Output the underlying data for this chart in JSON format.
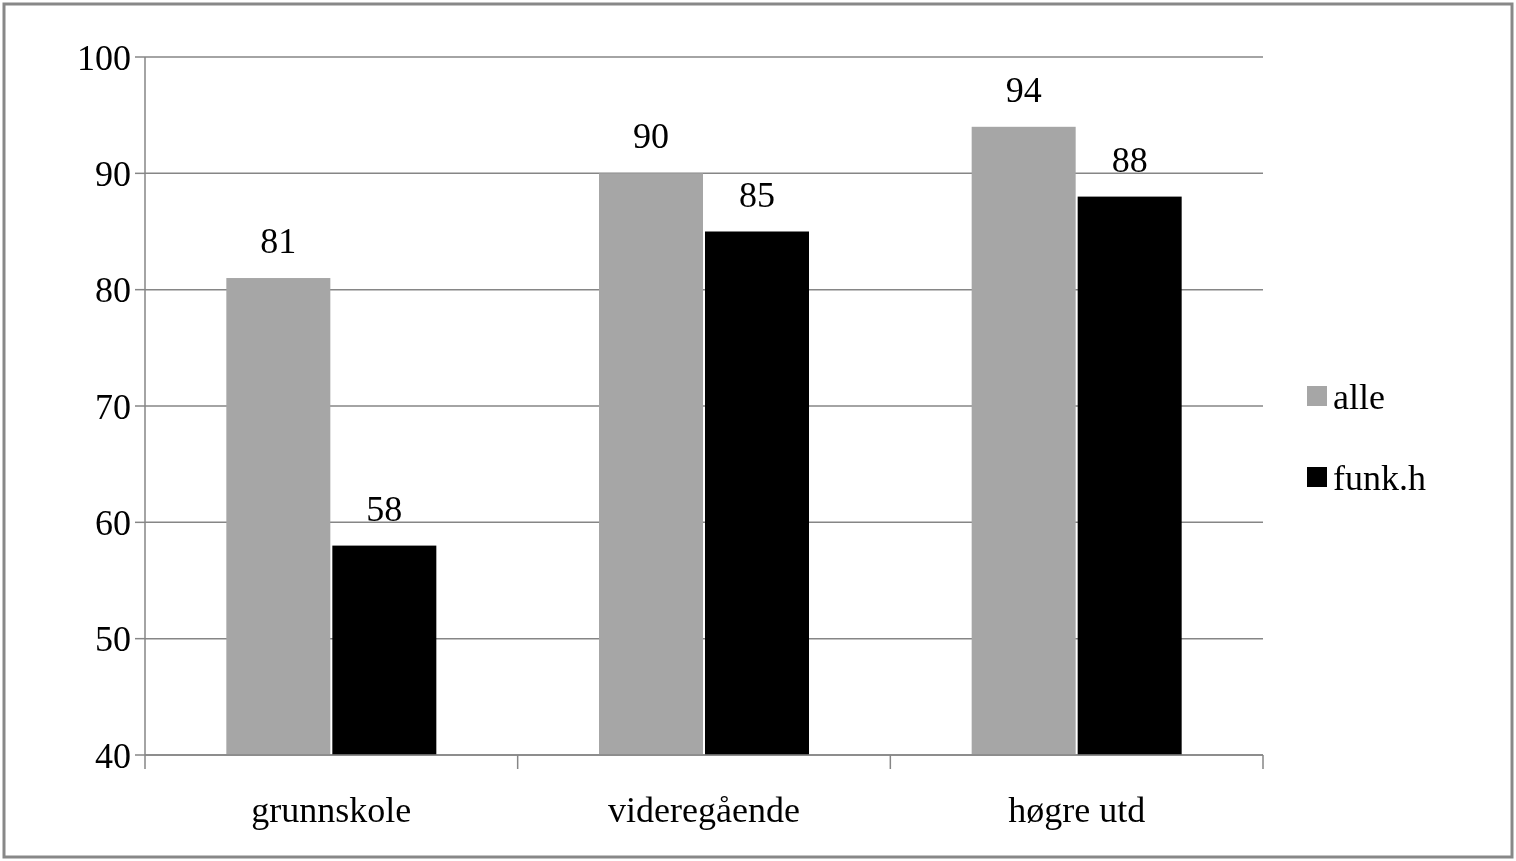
{
  "chart_data": {
    "type": "bar",
    "categories": [
      "grunnskole",
      "videregående",
      "høgre utd"
    ],
    "series": [
      {
        "name": "alle",
        "color": "#a6a6a6",
        "values": [
          81,
          90,
          94
        ]
      },
      {
        "name": "funk.h",
        "color": "#000000",
        "values": [
          58,
          85,
          88
        ]
      }
    ],
    "ylim": [
      40,
      100
    ],
    "yticks": [
      40,
      50,
      60,
      70,
      80,
      90,
      100
    ],
    "grid": "y",
    "legend": "right",
    "data_labels": true
  }
}
